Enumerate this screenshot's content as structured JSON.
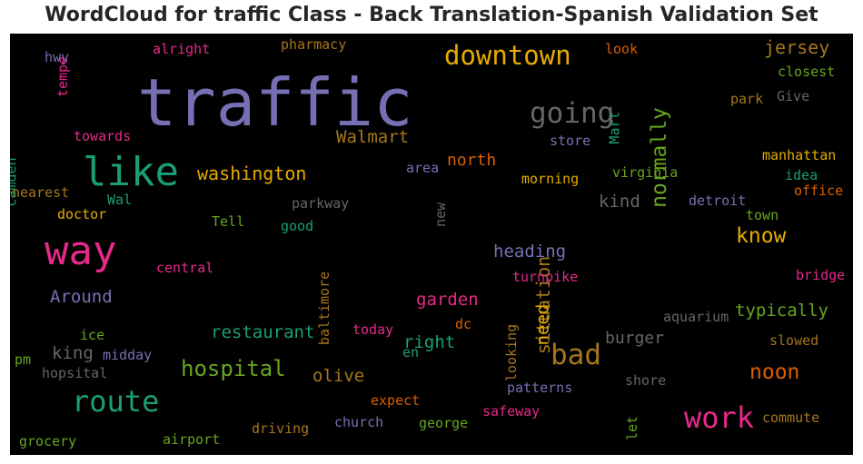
{
  "chart_data": {
    "type": "wordcloud",
    "title": "WordCloud for traffic Class - Back Translation-Spanish Validation Set",
    "background": "#000000",
    "palette": [
      "#7570b3",
      "#1b9e77",
      "#e7298a",
      "#d95f02",
      "#66a61e",
      "#e6ab02",
      "#a6761d",
      "#666666"
    ],
    "words": [
      {
        "text": "traffic",
        "color": "#7570b3"
      },
      {
        "text": "way",
        "color": "#e7298a"
      },
      {
        "text": "like",
        "color": "#1b9e77"
      },
      {
        "text": "route",
        "color": "#1b9e77"
      },
      {
        "text": "work",
        "color": "#e7298a"
      },
      {
        "text": "downtown",
        "color": "#e6ab02"
      },
      {
        "text": "going",
        "color": "#666666"
      },
      {
        "text": "bad",
        "color": "#a6761d"
      },
      {
        "text": "normally",
        "color": "#66a61e"
      },
      {
        "text": "hospital",
        "color": "#66a61e"
      },
      {
        "text": "noon",
        "color": "#d95f02"
      },
      {
        "text": "know",
        "color": "#e6ab02"
      },
      {
        "text": "washington",
        "color": "#e6ab02"
      },
      {
        "text": "jersey",
        "color": "#a6761d"
      },
      {
        "text": "situation",
        "color": "#a6761d"
      },
      {
        "text": "Walmart",
        "color": "#a6761d"
      },
      {
        "text": "heading",
        "color": "#7570b3"
      },
      {
        "text": "Around",
        "color": "#7570b3"
      },
      {
        "text": "restaurant",
        "color": "#1b9e77"
      },
      {
        "text": "garden",
        "color": "#e7298a"
      },
      {
        "text": "north",
        "color": "#d95f02"
      },
      {
        "text": "olive",
        "color": "#a6761d"
      },
      {
        "text": "typically",
        "color": "#66a61e"
      },
      {
        "text": "right",
        "color": "#1b9e77"
      },
      {
        "text": "burger",
        "color": "#666666"
      },
      {
        "text": "king",
        "color": "#666666"
      },
      {
        "text": "need",
        "color": "#e6ab02"
      },
      {
        "text": "kind",
        "color": "#666666"
      },
      {
        "text": "manhattan",
        "color": "#e6ab02"
      },
      {
        "text": "virginia",
        "color": "#66a61e"
      },
      {
        "text": "morning",
        "color": "#e6ab02"
      },
      {
        "text": "closest",
        "color": "#66a61e"
      },
      {
        "text": "pm",
        "color": "#66a61e"
      },
      {
        "text": "pharmacy",
        "color": "#a6761d"
      },
      {
        "text": "alright",
        "color": "#e7298a"
      },
      {
        "text": "look",
        "color": "#d95f02"
      },
      {
        "text": "hwy",
        "color": "#7570b3"
      },
      {
        "text": "tempe",
        "color": "#e7298a"
      },
      {
        "text": "park",
        "color": "#a6761d"
      },
      {
        "text": "Give",
        "color": "#666666"
      },
      {
        "text": "Mart",
        "color": "#1b9e77"
      },
      {
        "text": "store",
        "color": "#7570b3"
      },
      {
        "text": "towards",
        "color": "#e7298a"
      },
      {
        "text": "camden",
        "color": "#1b9e77"
      },
      {
        "text": "nearest",
        "color": "#a6761d"
      },
      {
        "text": "Wal",
        "color": "#1b9e77"
      },
      {
        "text": "doctor",
        "color": "#e6ab02"
      },
      {
        "text": "area",
        "color": "#7570b3"
      },
      {
        "text": "parkway",
        "color": "#666666"
      },
      {
        "text": "detroit",
        "color": "#7570b3"
      },
      {
        "text": "idea",
        "color": "#1b9e77"
      },
      {
        "text": "office",
        "color": "#d95f02"
      },
      {
        "text": "town",
        "color": "#66a61e"
      },
      {
        "text": "Tell",
        "color": "#66a61e"
      },
      {
        "text": "good",
        "color": "#1b9e77"
      },
      {
        "text": "new",
        "color": "#666666"
      },
      {
        "text": "baltimore",
        "color": "#a6761d"
      },
      {
        "text": "central",
        "color": "#e7298a"
      },
      {
        "text": "turnpike",
        "color": "#e7298a"
      },
      {
        "text": "bridge",
        "color": "#e7298a"
      },
      {
        "text": "aquarium",
        "color": "#666666"
      },
      {
        "text": "ice",
        "color": "#66a61e"
      },
      {
        "text": "today",
        "color": "#e7298a"
      },
      {
        "text": "dc",
        "color": "#d95f02"
      },
      {
        "text": "looking",
        "color": "#a6761d"
      },
      {
        "text": "midday",
        "color": "#7570b3"
      },
      {
        "text": "en",
        "color": "#1b9e77"
      },
      {
        "text": "slowed",
        "color": "#a6761d"
      },
      {
        "text": "hopsital",
        "color": "#666666"
      },
      {
        "text": "shore",
        "color": "#666666"
      },
      {
        "text": "patterns",
        "color": "#7570b3"
      },
      {
        "text": "expect",
        "color": "#d95f02"
      },
      {
        "text": "safeway",
        "color": "#e7298a"
      },
      {
        "text": "church",
        "color": "#7570b3"
      },
      {
        "text": "george",
        "color": "#66a61e"
      },
      {
        "text": "let",
        "color": "#66a61e"
      },
      {
        "text": "commute",
        "color": "#a6761d"
      },
      {
        "text": "driving",
        "color": "#a6761d"
      },
      {
        "text": "grocery",
        "color": "#66a61e"
      },
      {
        "text": "airport",
        "color": "#66a61e"
      }
    ]
  }
}
